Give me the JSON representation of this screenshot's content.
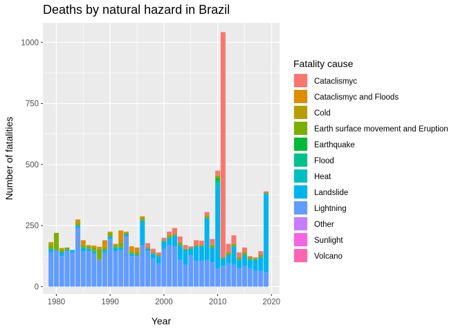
{
  "chart_data": {
    "type": "bar",
    "stacked": true,
    "title": "Deaths by natural hazard in Brazil",
    "xlabel": "Year",
    "ylabel": "Number of fatalities",
    "xlim": [
      1977.5,
      2021.5
    ],
    "ylim": [
      -30,
      1080
    ],
    "x_ticks": [
      1980,
      1990,
      2000,
      2010,
      2020
    ],
    "y_ticks": [
      0,
      250,
      500,
      750,
      1000
    ],
    "legend_title": "Fatality cause",
    "legend_position": "right",
    "series": [
      {
        "name": "Cataclismyc",
        "color": "#F8766D"
      },
      {
        "name": "Cataclismyc and Floods",
        "color": "#DE8C00"
      },
      {
        "name": "Cold",
        "color": "#B79F00"
      },
      {
        "name": "Earth surface movement and Eruption",
        "color": "#7CAE00"
      },
      {
        "name": "Earthquake",
        "color": "#00BA38"
      },
      {
        "name": "Flood",
        "color": "#00C08B"
      },
      {
        "name": "Heat",
        "color": "#00BFC4"
      },
      {
        "name": "Landslide",
        "color": "#00B4F0"
      },
      {
        "name": "Lightning",
        "color": "#619CFF"
      },
      {
        "name": "Other",
        "color": "#C77CFF"
      },
      {
        "name": "Sunlight",
        "color": "#F564E3"
      },
      {
        "name": "Volcano",
        "color": "#FF64B0"
      }
    ],
    "stack_order": [
      "Volcano",
      "Sunlight",
      "Other",
      "Lightning",
      "Landslide",
      "Heat",
      "Flood",
      "Earthquake",
      "Earth surface movement and Eruption",
      "Cold",
      "Cataclismyc and Floods",
      "Cataclismyc"
    ],
    "bars": [
      {
        "year": 1979,
        "values": {
          "Lightning": 140,
          "Landslide": 15,
          "Earth surface movement and Eruption": 15,
          "Cold": 12
        }
      },
      {
        "year": 1980,
        "values": {
          "Lightning": 150,
          "Earth surface movement and Eruption": 70
        }
      },
      {
        "year": 1981,
        "values": {
          "Lightning": 125,
          "Landslide": 15,
          "Earth surface movement and Eruption": 10,
          "Cold": 8
        }
      },
      {
        "year": 1982,
        "values": {
          "Lightning": 145,
          "Landslide": 5,
          "Earth surface movement and Eruption": 10
        }
      },
      {
        "year": 1983,
        "values": {
          "Lightning": 140,
          "Landslide": 10
        }
      },
      {
        "year": 1984,
        "values": {
          "Lightning": 240,
          "Landslide": 10,
          "Earth surface movement and Eruption": 10,
          "Cataclismyc and Floods": 15
        }
      },
      {
        "year": 1985,
        "values": {
          "Lightning": 145,
          "Landslide": 15,
          "Earth surface movement and Eruption": 10,
          "Cataclismyc and Floods": 20
        }
      },
      {
        "year": 1986,
        "values": {
          "Lightning": 145,
          "Landslide": 10,
          "Earth surface movement and Eruption": 10,
          "Cataclismyc and Floods": 5
        }
      },
      {
        "year": 1987,
        "values": {
          "Lightning": 135,
          "Landslide": 10,
          "Earth surface movement and Eruption": 15,
          "Cataclismyc and Floods": 8
        }
      },
      {
        "year": 1988,
        "values": {
          "Lightning": 110,
          "Earth surface movement and Eruption": 45,
          "Cataclismyc and Floods": 8
        }
      },
      {
        "year": 1989,
        "values": {
          "Lightning": 140,
          "Landslide": 10,
          "Earth surface movement and Eruption": 10,
          "Cataclismyc and Floods": 30
        }
      },
      {
        "year": 1990,
        "values": {
          "Lightning": 195,
          "Landslide": 10,
          "Earth surface movement and Eruption": 15,
          "Cataclismyc and Floods": 5
        }
      },
      {
        "year": 1991,
        "values": {
          "Lightning": 145,
          "Landslide": 15,
          "Earth surface movement and Eruption": 10,
          "Cataclismyc and Floods": 5
        }
      },
      {
        "year": 1992,
        "values": {
          "Lightning": 150,
          "Landslide": 10,
          "Earth surface movement and Eruption": 20,
          "Cataclismyc and Floods": 50
        }
      },
      {
        "year": 1993,
        "values": {
          "Lightning": 205,
          "Landslide": 10,
          "Earth surface movement and Eruption": 5,
          "Cataclismyc and Floods": 5
        }
      },
      {
        "year": 1994,
        "values": {
          "Lightning": 125,
          "Landslide": 10,
          "Earth surface movement and Eruption": 10,
          "Cataclismyc and Floods": 20
        }
      },
      {
        "year": 1995,
        "values": {
          "Lightning": 125,
          "Landslide": 5,
          "Earth surface movement and Eruption": 10,
          "Cataclismyc and Floods": 20
        }
      },
      {
        "year": 1996,
        "values": {
          "Lightning": 170,
          "Landslide": 100,
          "Earth surface movement and Eruption": 10,
          "Cataclismyc and Floods": 8
        }
      },
      {
        "year": 1997,
        "values": {
          "Lightning": 145,
          "Landslide": 10,
          "Earth surface movement and Eruption": 5,
          "Cataclismyc": 18
        }
      },
      {
        "year": 1998,
        "values": {
          "Lightning": 115,
          "Landslide": 20,
          "Earth surface movement and Eruption": 5,
          "Cataclismyc": 15
        }
      },
      {
        "year": 1999,
        "values": {
          "Lightning": 95,
          "Landslide": 30,
          "Earth surface movement and Eruption": 5,
          "Cataclismyc": 10
        }
      },
      {
        "year": 2000,
        "values": {
          "Lightning": 155,
          "Landslide": 30,
          "Earth surface movement and Eruption": 5,
          "Cataclismyc": 10
        }
      },
      {
        "year": 2001,
        "values": {
          "Lightning": 170,
          "Landslide": 30,
          "Earth surface movement and Eruption": 10,
          "Cataclismyc": 15
        }
      },
      {
        "year": 2002,
        "values": {
          "Lightning": 165,
          "Landslide": 45,
          "Earth surface movement and Eruption": 5,
          "Cataclismyc": 25
        }
      },
      {
        "year": 2003,
        "values": {
          "Lightning": 110,
          "Landslide": 60,
          "Earth surface movement and Eruption": 10,
          "Cataclismyc": 25
        }
      },
      {
        "year": 2004,
        "values": {
          "Lightning": 90,
          "Landslide": 60,
          "Earth surface movement and Eruption": 5,
          "Cataclismyc": 15
        }
      },
      {
        "year": 2005,
        "values": {
          "Lightning": 130,
          "Landslide": 25,
          "Earth surface movement and Eruption": 5,
          "Cataclismyc": 5
        }
      },
      {
        "year": 2006,
        "values": {
          "Lightning": 105,
          "Landslide": 60,
          "Earth surface movement and Eruption": 5,
          "Cataclismyc": 20
        }
      },
      {
        "year": 2007,
        "values": {
          "Lightning": 105,
          "Landslide": 60,
          "Earth surface movement and Eruption": 5,
          "Cataclismyc": 18
        }
      },
      {
        "year": 2008,
        "values": {
          "Lightning": 110,
          "Landslide": 170,
          "Earth surface movement and Eruption": 10,
          "Cataclismyc": 15
        }
      },
      {
        "year": 2009,
        "values": {
          "Lightning": 100,
          "Landslide": 60,
          "Earth surface movement and Eruption": 10,
          "Cataclismyc": 25
        }
      },
      {
        "year": 2010,
        "values": {
          "Lightning": 75,
          "Landslide": 330,
          "Heat": 20,
          "Flood": 10,
          "Earthquake": 10,
          "Earth surface movement and Eruption": 10,
          "Cataclismyc": 20
        }
      },
      {
        "year": 2011,
        "values": {
          "Lightning": 85,
          "Landslide": 30,
          "Earth surface movement and Eruption": 5,
          "Cataclismyc": 922
        }
      },
      {
        "year": 2012,
        "values": {
          "Lightning": 95,
          "Landslide": 35,
          "Earth surface movement and Eruption": 10,
          "Cataclismyc": 35
        }
      },
      {
        "year": 2013,
        "values": {
          "Lightning": 90,
          "Landslide": 75,
          "Earth surface movement and Eruption": 10,
          "Cataclismyc": 35
        }
      },
      {
        "year": 2014,
        "values": {
          "Lightning": 75,
          "Landslide": 35,
          "Earth surface movement and Eruption": 10,
          "Cataclismyc": 20
        }
      },
      {
        "year": 2015,
        "values": {
          "Lightning": 85,
          "Landslide": 45,
          "Earth surface movement and Eruption": 10,
          "Cataclismyc": 20
        }
      },
      {
        "year": 2016,
        "values": {
          "Lightning": 75,
          "Landslide": 35,
          "Earth surface movement and Eruption": 10,
          "Cataclismyc": 5
        }
      },
      {
        "year": 2017,
        "values": {
          "Lightning": 65,
          "Landslide": 45,
          "Earth surface movement and Eruption": 5,
          "Cataclismyc": 5
        }
      },
      {
        "year": 2018,
        "values": {
          "Lightning": 65,
          "Landslide": 55,
          "Earth surface movement and Eruption": 10,
          "Cataclismyc": 15
        }
      },
      {
        "year": 2019,
        "values": {
          "Lightning": 60,
          "Landslide": 320,
          "Earth surface movement and Eruption": 5,
          "Cataclismyc": 5
        }
      }
    ]
  }
}
